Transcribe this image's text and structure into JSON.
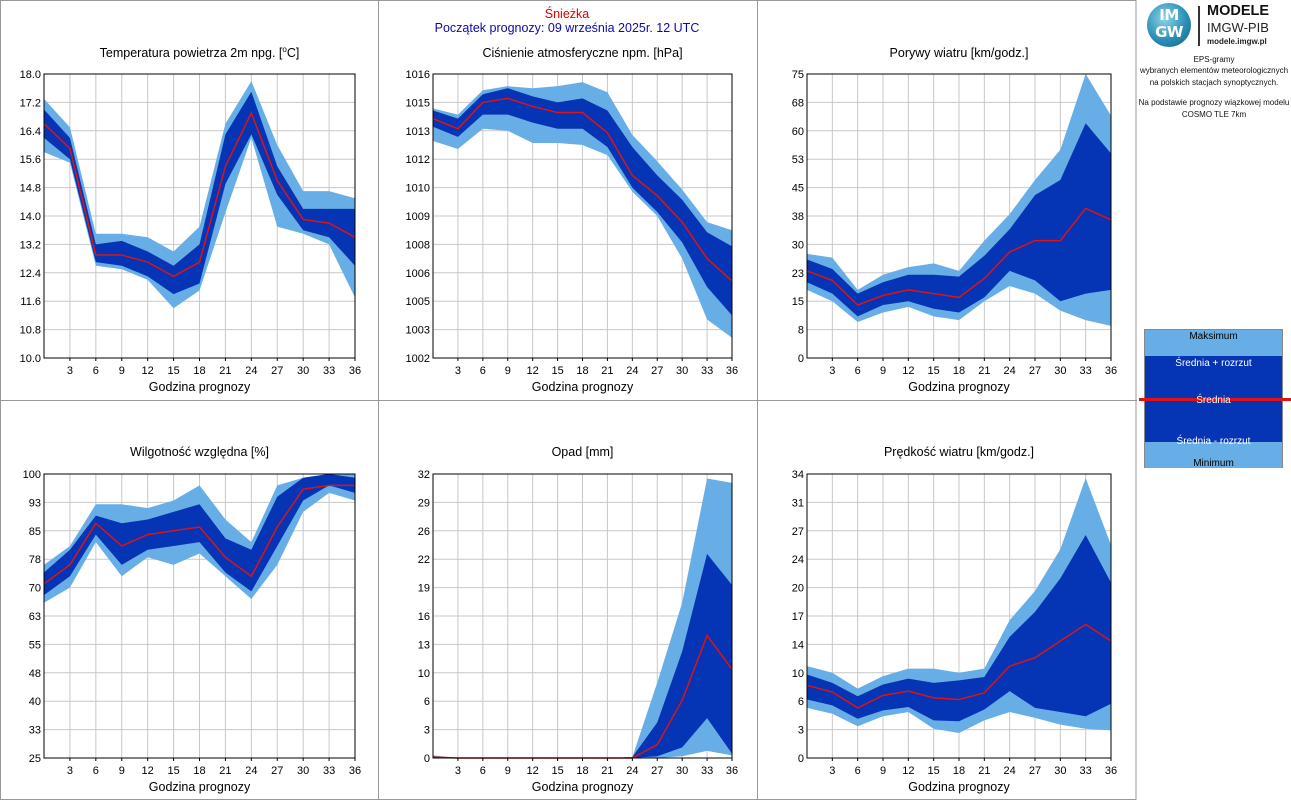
{
  "header": {
    "station": "Śnieżka",
    "forecast_start": "Początek prognozy: 09 września 2025r. 12 UTC"
  },
  "sidebar": {
    "logo_circle_top": "IM",
    "logo_circle_bottom": "GW",
    "brand_title": "MODELE",
    "brand_subtitle": "IMGW-PIB",
    "brand_url": "modele.imgw.pl",
    "description_lines": [
      "EPS-gramy",
      "wybranych elementów meteorologicznych",
      "na polskich stacjach  synoptycznych."
    ],
    "model_lines": [
      "Na podstawie prognozy wiązkowej modelu",
      "COSMO TLE 7km"
    ]
  },
  "legend": {
    "max": "Maksimum",
    "mean_plus": "Średnia + rozrzut",
    "mean": "Średnia",
    "mean_minus": "Średnia - rozrzut",
    "min": "Minimum"
  },
  "colors": {
    "range_band": "#67aee6",
    "spread_band": "#0534b4",
    "mean_line": "#e01313",
    "grid": "#c8c8c8",
    "panel_border": "#999999"
  },
  "chart_data": [
    {
      "type": "area",
      "title": "Temperatura powietrza 2m npg. [°C]",
      "title_parts": [
        "Temperatura powietrza 2m npg. [",
        "o",
        "C]"
      ],
      "xlabel": "Godzina prognozy",
      "ylabel": "",
      "x": [
        0,
        3,
        6,
        9,
        12,
        15,
        18,
        21,
        24,
        27,
        30,
        33,
        36
      ],
      "xticks": [
        "3",
        "6",
        "9",
        "12",
        "15",
        "18",
        "21",
        "24",
        "27",
        "30",
        "33",
        "36"
      ],
      "xlim": [
        0,
        36
      ],
      "ylim": [
        10.0,
        18.0
      ],
      "yticks": [
        "10.0",
        "10.8",
        "11.6",
        "12.4",
        "13.2",
        "14.0",
        "14.8",
        "15.6",
        "16.4",
        "17.2",
        "18.0"
      ],
      "grid": true,
      "max": [
        17.3,
        16.5,
        13.5,
        13.5,
        13.4,
        13.0,
        13.7,
        16.6,
        17.8,
        16.0,
        14.7,
        14.7,
        14.5
      ],
      "mean_plus": [
        17.0,
        16.2,
        13.2,
        13.3,
        13.0,
        12.6,
        13.2,
        16.3,
        17.5,
        15.4,
        14.2,
        14.2,
        14.2
      ],
      "mean": [
        16.6,
        15.9,
        12.9,
        12.9,
        12.7,
        12.3,
        12.7,
        15.4,
        16.9,
        15.0,
        13.9,
        13.8,
        13.4
      ],
      "mean_minus": [
        16.2,
        15.6,
        12.7,
        12.6,
        12.3,
        11.8,
        12.1,
        14.9,
        16.3,
        14.6,
        13.6,
        13.4,
        12.6
      ],
      "min": [
        15.8,
        15.5,
        12.6,
        12.5,
        12.2,
        11.4,
        11.9,
        14.1,
        16.2,
        13.7,
        13.5,
        13.2,
        11.7
      ]
    },
    {
      "type": "area",
      "title": "Ciśnienie atmosferyczne npm. [hPa]",
      "xlabel": "Godzina prognozy",
      "ylabel": "",
      "x": [
        0,
        3,
        6,
        9,
        12,
        15,
        18,
        21,
        24,
        27,
        30,
        33,
        36
      ],
      "xticks": [
        "3",
        "6",
        "9",
        "12",
        "15",
        "18",
        "21",
        "24",
        "27",
        "30",
        "33",
        "36"
      ],
      "xlim": [
        0,
        36
      ],
      "ylim": [
        1002,
        1016
      ],
      "yticks": [
        "1002",
        "1003",
        "1005",
        "1006",
        "1008",
        "1009",
        "1010",
        "1012",
        "1013",
        "1015",
        "1016"
      ],
      "grid": true,
      "max": [
        1014.3,
        1014.0,
        1015.2,
        1015.4,
        1015.3,
        1015.4,
        1015.6,
        1015.1,
        1013.0,
        1011.7,
        1010.3,
        1008.7,
        1008.3
      ],
      "mean_plus": [
        1014.2,
        1013.8,
        1015.0,
        1015.3,
        1014.9,
        1014.6,
        1014.8,
        1014.2,
        1012.4,
        1011.0,
        1009.8,
        1008.2,
        1007.5
      ],
      "mean": [
        1013.8,
        1013.3,
        1014.6,
        1014.8,
        1014.4,
        1014.1,
        1014.1,
        1013.1,
        1011.0,
        1010.0,
        1008.7,
        1006.9,
        1005.8
      ],
      "mean_minus": [
        1013.4,
        1012.9,
        1014.0,
        1014.0,
        1013.6,
        1013.3,
        1013.3,
        1012.4,
        1010.4,
        1009.2,
        1007.7,
        1005.5,
        1004.1
      ],
      "min": [
        1012.7,
        1012.3,
        1013.3,
        1013.2,
        1012.6,
        1012.6,
        1012.5,
        1012.0,
        1010.2,
        1009.0,
        1006.9,
        1003.9,
        1003.0
      ]
    },
    {
      "type": "area",
      "title": "Porywy wiatru [km/godz.]",
      "xlabel": "Godzina prognozy",
      "ylabel": "",
      "x": [
        0,
        3,
        6,
        9,
        12,
        15,
        18,
        21,
        24,
        27,
        30,
        33,
        36
      ],
      "xticks": [
        "3",
        "6",
        "9",
        "12",
        "15",
        "18",
        "21",
        "24",
        "27",
        "30",
        "33",
        "36"
      ],
      "xlim": [
        0,
        36
      ],
      "ylim": [
        0,
        75
      ],
      "yticks": [
        "0",
        "8",
        "15",
        "23",
        "30",
        "38",
        "45",
        "53",
        "60",
        "68",
        "75"
      ],
      "grid": true,
      "max": [
        27.5,
        26.5,
        18.0,
        22.0,
        24.0,
        25.0,
        23.0,
        31.0,
        38.0,
        47.0,
        55.0,
        75.0,
        64.0
      ],
      "mean_plus": [
        26.0,
        23.5,
        17.0,
        20.0,
        22.0,
        22.0,
        21.5,
        27.0,
        34.0,
        43.0,
        47.0,
        62.0,
        54.0
      ],
      "mean": [
        23.0,
        20.5,
        14.0,
        16.5,
        18.0,
        17.0,
        16.0,
        21.0,
        28.0,
        31.0,
        31.0,
        39.5,
        36.5
      ],
      "mean_minus": [
        20.0,
        17.0,
        11.0,
        14.0,
        15.0,
        13.0,
        12.0,
        16.0,
        23.0,
        20.5,
        15.0,
        17.0,
        18.0
      ],
      "min": [
        18.0,
        15.0,
        9.5,
        12.0,
        13.5,
        11.0,
        10.0,
        15.0,
        19.0,
        17.0,
        12.5,
        10.0,
        8.5
      ]
    },
    {
      "type": "area",
      "title": "Wilgotność względna [%]",
      "xlabel": "Godzina prognozy",
      "ylabel": "",
      "x": [
        0,
        3,
        6,
        9,
        12,
        15,
        18,
        21,
        24,
        27,
        30,
        33,
        36
      ],
      "xticks": [
        "3",
        "6",
        "9",
        "12",
        "15",
        "18",
        "21",
        "24",
        "27",
        "30",
        "33",
        "36"
      ],
      "xlim": [
        0,
        36
      ],
      "ylim": [
        25,
        100
      ],
      "yticks": [
        "25",
        "33",
        "40",
        "48",
        "55",
        "63",
        "70",
        "78",
        "85",
        "93",
        "100"
      ],
      "grid": true,
      "max": [
        76,
        81,
        92,
        92,
        91,
        93,
        97,
        88,
        82,
        97,
        99,
        100,
        100
      ],
      "mean_plus": [
        74,
        80,
        89,
        87,
        88,
        90,
        92,
        83,
        80,
        94,
        99,
        100,
        99
      ],
      "mean": [
        71,
        76,
        87,
        81,
        84,
        85,
        86,
        78,
        73,
        86,
        96,
        97,
        97
      ],
      "mean_minus": [
        68,
        73,
        84,
        76,
        80,
        81,
        82,
        74,
        69,
        81,
        93,
        97,
        95
      ],
      "min": [
        66,
        70,
        82,
        73,
        78,
        76,
        79,
        73,
        67,
        76,
        90,
        95,
        93
      ]
    },
    {
      "type": "area",
      "title": "Opad [mm]",
      "xlabel": "Godzina prognozy",
      "ylabel": "",
      "x": [
        0,
        3,
        6,
        9,
        12,
        15,
        18,
        21,
        24,
        27,
        30,
        33,
        36
      ],
      "xticks": [
        "3",
        "6",
        "9",
        "12",
        "15",
        "18",
        "21",
        "24",
        "27",
        "30",
        "33",
        "36"
      ],
      "xlim": [
        0,
        36
      ],
      "ylim": [
        0,
        32
      ],
      "yticks": [
        "0",
        "3",
        "6",
        "10",
        "13",
        "16",
        "19",
        "22",
        "26",
        "29",
        "32"
      ],
      "grid": true,
      "max": [
        0.3,
        0,
        0,
        0,
        0,
        0,
        0,
        0,
        0.1,
        8.5,
        17.5,
        31.5,
        31.0
      ],
      "mean_plus": [
        0.2,
        0,
        0,
        0,
        0,
        0,
        0,
        0,
        0.1,
        4.0,
        12.0,
        23.0,
        19.5
      ],
      "mean": [
        0.1,
        0,
        0,
        0,
        0,
        0,
        0,
        0,
        0,
        1.5,
        6.5,
        13.8,
        10.0
      ],
      "mean_minus": [
        0,
        0,
        0,
        0,
        0,
        0,
        0,
        0,
        0,
        0.2,
        1.2,
        4.5,
        0.5
      ],
      "min": [
        0,
        0,
        0,
        0,
        0,
        0,
        0,
        0,
        0,
        0,
        0.2,
        0.8,
        0.3
      ]
    },
    {
      "type": "area",
      "title": "Prędkość wiatru [km/godz.]",
      "xlabel": "Godzina prognozy",
      "ylabel": "",
      "x": [
        0,
        3,
        6,
        9,
        12,
        15,
        18,
        21,
        24,
        27,
        30,
        33,
        36
      ],
      "xticks": [
        "3",
        "6",
        "9",
        "12",
        "15",
        "18",
        "21",
        "24",
        "27",
        "30",
        "33",
        "36"
      ],
      "xlim": [
        0,
        36
      ],
      "ylim": [
        0,
        34
      ],
      "yticks": [
        "0",
        "3",
        "6",
        "10",
        "14",
        "17",
        "20",
        "24",
        "27",
        "31",
        "34"
      ],
      "grid": true,
      "max": [
        11.0,
        10.2,
        8.3,
        9.8,
        10.7,
        10.7,
        10.2,
        10.7,
        16.5,
        20.0,
        25.0,
        33.5,
        25.5
      ],
      "mean_plus": [
        10.0,
        9.0,
        7.4,
        8.8,
        9.5,
        9.0,
        9.3,
        9.7,
        14.5,
        17.5,
        21.5,
        26.7,
        21.0
      ],
      "mean": [
        8.7,
        7.9,
        6.0,
        7.5,
        8.0,
        7.2,
        7.0,
        7.8,
        11.0,
        12.0,
        14.0,
        16.0,
        14.0
      ],
      "mean_minus": [
        7.0,
        6.3,
        4.7,
        5.7,
        6.1,
        4.5,
        4.4,
        5.8,
        8.0,
        6.0,
        5.5,
        5.0,
        6.5
      ],
      "min": [
        6.0,
        5.3,
        3.8,
        5.0,
        5.5,
        3.5,
        3.0,
        4.5,
        5.5,
        4.8,
        4.0,
        3.5,
        3.3
      ]
    }
  ]
}
